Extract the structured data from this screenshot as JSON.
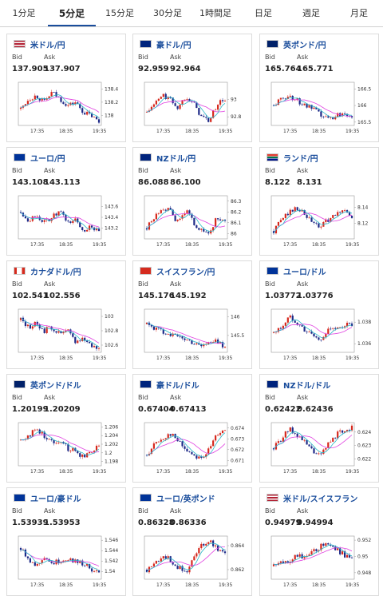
{
  "tabs": [
    {
      "label": "1分足",
      "active": false
    },
    {
      "label": "5分足",
      "active": true
    },
    {
      "label": "15分足",
      "active": false
    },
    {
      "label": "30分足",
      "active": false
    },
    {
      "label": "1時間足",
      "active": false
    },
    {
      "label": "日足",
      "active": false
    },
    {
      "label": "週足",
      "active": false
    },
    {
      "label": "月足",
      "active": false
    }
  ],
  "bid_label": "Bid",
  "ask_label": "Ask",
  "colors": {
    "up": "#d6281d",
    "down": "#1e2a88",
    "ma": "#e040e0",
    "ma2": "#29b8c8",
    "link": "#1a4d9c"
  },
  "cards": [
    {
      "pair": "米ドル/円",
      "bid": "137.905",
      "ask": "137.907",
      "flag": "us",
      "chart_data": {
        "type": "candlestick",
        "x_ticks": [
          "17:35",
          "18:35",
          "19:35"
        ],
        "y_ticks": [
          "138.4",
          "138.2",
          "138"
        ],
        "ylim": [
          137.85,
          138.5
        ],
        "trend": [
          138.1,
          138.25,
          138.3,
          138.2,
          138.35,
          138.25,
          138.15,
          138.2,
          138.05,
          138.0,
          137.9
        ]
      }
    },
    {
      "pair": "豪ドル/円",
      "bid": "92.959",
      "ask": "92.964",
      "flag": "au",
      "chart_data": {
        "type": "candlestick",
        "x_ticks": [
          "17:35",
          "18:35",
          "19:35"
        ],
        "y_ticks": [
          "93",
          "92.8"
        ],
        "ylim": [
          92.7,
          93.2
        ],
        "trend": [
          92.85,
          92.95,
          93.05,
          93.0,
          92.9,
          93.05,
          92.95,
          92.8,
          92.75,
          92.95,
          93.0
        ]
      }
    },
    {
      "pair": "英ポンド/円",
      "bid": "165.764",
      "ask": "165.771",
      "flag": "gb",
      "chart_data": {
        "type": "candlestick",
        "x_ticks": [
          "17:35",
          "18:35",
          "19:35"
        ],
        "y_ticks": [
          "166.5",
          "166",
          "165.5"
        ],
        "ylim": [
          165.4,
          166.7
        ],
        "trend": [
          166.0,
          166.2,
          166.3,
          166.15,
          166.0,
          165.9,
          165.7,
          165.6,
          165.7,
          165.8,
          165.7
        ]
      }
    },
    {
      "pair": "ユーロ/円",
      "bid": "143.108",
      "ask": "143.113",
      "flag": "eu",
      "chart_data": {
        "type": "candlestick",
        "x_ticks": [
          "17:35",
          "18:35",
          "19:35"
        ],
        "y_ticks": [
          "143.6",
          "143.4",
          "143.2"
        ],
        "ylim": [
          143.0,
          143.8
        ],
        "trend": [
          143.5,
          143.35,
          143.45,
          143.3,
          143.4,
          143.5,
          143.3,
          143.35,
          143.15,
          143.25,
          143.1
        ]
      }
    },
    {
      "pair": "NZドル/円",
      "bid": "86.088",
      "ask": "86.100",
      "flag": "nz",
      "chart_data": {
        "type": "candlestick",
        "x_ticks": [
          "17:35",
          "18:35",
          "19:35"
        ],
        "y_ticks": [
          "86.3",
          "86.2",
          "86.1",
          "86"
        ],
        "ylim": [
          85.95,
          86.35
        ],
        "trend": [
          86.05,
          86.15,
          86.25,
          86.2,
          86.1,
          86.22,
          86.1,
          86.02,
          86.0,
          86.15,
          86.1
        ]
      }
    },
    {
      "pair": "ランド/円",
      "bid": "8.122",
      "ask": "8.131",
      "flag": "za",
      "chart_data": {
        "type": "candlestick",
        "x_ticks": [
          "17:35",
          "18:35",
          "19:35"
        ],
        "y_ticks": [
          "8.14",
          "8.12"
        ],
        "ylim": [
          8.1,
          8.155
        ],
        "trend": [
          8.11,
          8.125,
          8.135,
          8.14,
          8.13,
          8.12,
          8.115,
          8.125,
          8.13,
          8.14,
          8.125
        ]
      }
    },
    {
      "pair": "カナダドル/円",
      "bid": "102.541",
      "ask": "102.556",
      "flag": "ca",
      "chart_data": {
        "type": "candlestick",
        "x_ticks": [
          "17:35",
          "18:35",
          "19:35"
        ],
        "y_ticks": [
          "103",
          "102.8",
          "102.6"
        ],
        "ylim": [
          102.5,
          103.1
        ],
        "trend": [
          102.95,
          102.85,
          102.9,
          102.8,
          102.85,
          102.75,
          102.8,
          102.65,
          102.7,
          102.6,
          102.55
        ]
      }
    },
    {
      "pair": "スイスフラン/円",
      "bid": "145.176",
      "ask": "145.192",
      "flag": "ch",
      "chart_data": {
        "type": "candlestick",
        "x_ticks": [
          "17:35",
          "18:35",
          "19:35"
        ],
        "y_ticks": [
          "146",
          "145.5"
        ],
        "ylim": [
          145.05,
          146.2
        ],
        "trend": [
          145.8,
          145.7,
          145.6,
          145.55,
          145.45,
          145.4,
          145.3,
          145.25,
          145.3,
          145.35,
          145.2
        ]
      }
    },
    {
      "pair": "ユーロ/ドル",
      "bid": "1.03772",
      "ask": "1.03776",
      "flag": "eu",
      "chart_data": {
        "type": "candlestick",
        "x_ticks": [
          "17:35",
          "18:35",
          "19:35"
        ],
        "y_ticks": [
          "1.038",
          "1.036"
        ],
        "ylim": [
          1.0352,
          1.0392
        ],
        "trend": [
          1.037,
          1.0375,
          1.0385,
          1.038,
          1.0372,
          1.0368,
          1.0362,
          1.0375,
          1.0372,
          1.0378,
          1.0377
        ]
      }
    },
    {
      "pair": "英ポンド/ドル",
      "bid": "1.20199",
      "ask": "1.20209",
      "flag": "gb",
      "chart_data": {
        "type": "candlestick",
        "x_ticks": [
          "17:35",
          "18:35",
          "19:35"
        ],
        "y_ticks": [
          "1.206",
          "1.204",
          "1.202",
          "1.2",
          "1.198"
        ],
        "ylim": [
          1.197,
          1.207
        ],
        "trend": [
          1.203,
          1.204,
          1.2055,
          1.204,
          1.2025,
          1.203,
          1.201,
          1.2005,
          1.199,
          1.2005,
          1.202
        ]
      }
    },
    {
      "pair": "豪ドル/ドル",
      "bid": "0.67404",
      "ask": "0.67413",
      "flag": "au",
      "chart_data": {
        "type": "candlestick",
        "x_ticks": [
          "17:35",
          "18:35",
          "19:35"
        ],
        "y_ticks": [
          "0.674",
          "0.673",
          "0.672",
          "0.671"
        ],
        "ylim": [
          0.6705,
          0.6745
        ],
        "trend": [
          0.6715,
          0.6725,
          0.673,
          0.6735,
          0.6728,
          0.672,
          0.6715,
          0.6712,
          0.672,
          0.6735,
          0.674
        ]
      }
    },
    {
      "pair": "NZドル/ドル",
      "bid": "0.62422",
      "ask": "0.62436",
      "flag": "nz",
      "chart_data": {
        "type": "candlestick",
        "x_ticks": [
          "17:35",
          "18:35",
          "19:35"
        ],
        "y_ticks": [
          "0.624",
          "0.623",
          "0.622"
        ],
        "ylim": [
          0.6215,
          0.6247
        ],
        "trend": [
          0.6228,
          0.6235,
          0.6242,
          0.6238,
          0.6232,
          0.6226,
          0.6222,
          0.6232,
          0.6238,
          0.6242,
          0.6243
        ]
      }
    },
    {
      "pair": "ユーロ/豪ドル",
      "bid": "1.53939",
      "ask": "1.53953",
      "flag": "eu",
      "chart_data": {
        "type": "candlestick",
        "x_ticks": [
          "17:35",
          "18:35",
          "19:35"
        ],
        "y_ticks": [
          "1.546",
          "1.544",
          "1.542",
          "1.54"
        ],
        "ylim": [
          1.5385,
          1.5468
        ],
        "trend": [
          1.5445,
          1.5425,
          1.541,
          1.543,
          1.5415,
          1.542,
          1.5425,
          1.542,
          1.5415,
          1.5405,
          1.5395
        ]
      }
    },
    {
      "pair": "ユーロ/英ポンド",
      "bid": "0.86328",
      "ask": "0.86336",
      "flag": "eu",
      "chart_data": {
        "type": "candlestick",
        "x_ticks": [
          "17:35",
          "18:35",
          "19:35"
        ],
        "y_ticks": [
          "0.864",
          "0.862"
        ],
        "ylim": [
          0.8612,
          0.8648
        ],
        "trend": [
          0.862,
          0.8625,
          0.8632,
          0.8628,
          0.8622,
          0.8618,
          0.863,
          0.864,
          0.8645,
          0.8638,
          0.8633
        ]
      }
    },
    {
      "pair": "米ドル/スイスフラン",
      "bid": "0.94979",
      "ask": "0.94994",
      "flag": "us",
      "chart_data": {
        "type": "candlestick",
        "x_ticks": [
          "17:35",
          "18:35",
          "19:35"
        ],
        "y_ticks": [
          "0.952",
          "0.95",
          "0.948"
        ],
        "ylim": [
          0.9472,
          0.9525
        ],
        "trend": [
          0.9488,
          0.9492,
          0.9495,
          0.9502,
          0.9498,
          0.9505,
          0.9512,
          0.9518,
          0.9508,
          0.9502,
          0.9498
        ]
      }
    }
  ]
}
